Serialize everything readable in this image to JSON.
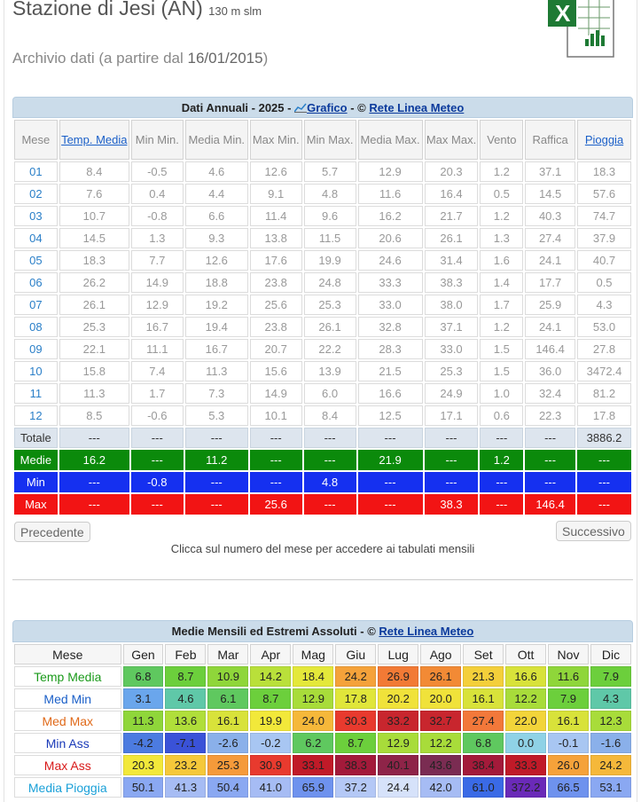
{
  "header": {
    "station": "Stazione di Jesi (AN)",
    "altitude": "130 m slm",
    "archive_prefix": "Archivio dati (a partire dal",
    "archive_date": "16/01/2015",
    "archive_suffix": ")"
  },
  "annual": {
    "title_prefix": "Dati Annuali - 2025 -",
    "chart_link": "Grafico",
    "sep": "- ©",
    "source_link": "Rete Linea Meteo",
    "columns": [
      "Mese",
      "Temp. Media",
      "Min Min.",
      "Media Min.",
      "Max Min.",
      "Min Max.",
      "Media Max.",
      "Max Max.",
      "Vento",
      "Raffica",
      "Pioggia"
    ],
    "rows": [
      [
        "01",
        "8.4",
        "-0.5",
        "4.6",
        "12.6",
        "5.7",
        "12.9",
        "20.3",
        "1.2",
        "37.1",
        "18.3"
      ],
      [
        "02",
        "7.6",
        "0.4",
        "4.4",
        "9.1",
        "4.8",
        "11.6",
        "16.4",
        "0.5",
        "14.5",
        "57.6"
      ],
      [
        "03",
        "10.7",
        "-0.8",
        "6.6",
        "11.4",
        "9.6",
        "16.2",
        "21.7",
        "1.2",
        "40.3",
        "74.7"
      ],
      [
        "04",
        "14.5",
        "1.3",
        "9.3",
        "13.8",
        "11.5",
        "20.6",
        "26.1",
        "1.3",
        "27.4",
        "37.9"
      ],
      [
        "05",
        "18.3",
        "7.7",
        "12.6",
        "17.6",
        "19.9",
        "24.6",
        "31.4",
        "1.6",
        "24.1",
        "40.7"
      ],
      [
        "06",
        "26.2",
        "14.9",
        "18.8",
        "23.8",
        "24.8",
        "33.3",
        "38.3",
        "1.4",
        "17.7",
        "0.5"
      ],
      [
        "07",
        "26.1",
        "12.9",
        "19.2",
        "25.6",
        "25.3",
        "33.0",
        "38.0",
        "1.7",
        "25.9",
        "4.3"
      ],
      [
        "08",
        "25.3",
        "16.7",
        "19.4",
        "23.8",
        "26.1",
        "32.8",
        "37.1",
        "1.2",
        "24.1",
        "53.0"
      ],
      [
        "09",
        "22.1",
        "11.1",
        "16.7",
        "20.7",
        "22.2",
        "28.3",
        "33.0",
        "1.5",
        "146.4",
        "27.8"
      ],
      [
        "10",
        "15.8",
        "7.4",
        "11.3",
        "15.6",
        "13.9",
        "21.5",
        "25.3",
        "1.5",
        "36.0",
        "3472.4"
      ],
      [
        "11",
        "11.3",
        "1.7",
        "7.3",
        "14.9",
        "6.0",
        "16.6",
        "24.9",
        "1.0",
        "32.4",
        "81.2"
      ],
      [
        "12",
        "8.5",
        "-0.6",
        "5.3",
        "10.1",
        "8.4",
        "12.5",
        "17.1",
        "0.6",
        "22.3",
        "17.8"
      ]
    ],
    "totale": [
      "Totale",
      "---",
      "---",
      "---",
      "---",
      "---",
      "---",
      "---",
      "---",
      "---",
      "3886.2"
    ],
    "medie": [
      "Medie",
      "16.2",
      "---",
      "11.2",
      "---",
      "---",
      "21.9",
      "---",
      "1.2",
      "---",
      "---"
    ],
    "min": [
      "Min",
      "---",
      "-0.8",
      "---",
      "---",
      "4.8",
      "---",
      "---",
      "---",
      "---",
      "---"
    ],
    "max": [
      "Max",
      "---",
      "---",
      "---",
      "25.6",
      "---",
      "---",
      "38.3",
      "---",
      "146.4",
      "---"
    ],
    "prev_button": "Precedente",
    "next_button": "Successivo",
    "note": "Clicca sul numero del mese per accedere ai tabulati mensili"
  },
  "monthly": {
    "title_prefix": "Medie Mensili ed Estremi Assoluti - ©",
    "source_link": "Rete Linea Meteo",
    "columns": [
      "Mese",
      "Gen",
      "Feb",
      "Mar",
      "Apr",
      "Mag",
      "Giu",
      "Lug",
      "Ago",
      "Set",
      "Ott",
      "Nov",
      "Dic"
    ],
    "rows": [
      {
        "label": "Temp Media",
        "label_color": "#1a9a1a",
        "values": [
          "6.8",
          "8.7",
          "10.9",
          "14.2",
          "18.4",
          "24.2",
          "26.9",
          "26.1",
          "21.3",
          "16.6",
          "11.6",
          "7.9"
        ],
        "colors": [
          "#5fc85f",
          "#6ccf3c",
          "#8fd63a",
          "#b9e03a",
          "#e4e83a",
          "#f5a23a",
          "#f27a35",
          "#f28a35",
          "#f4cf3a",
          "#d8e23a",
          "#8fd63a",
          "#6ccf3c"
        ]
      },
      {
        "label": "Med Min",
        "label_color": "#1a5fc8",
        "values": [
          "3.1",
          "4.6",
          "6.1",
          "8.7",
          "12.9",
          "17.8",
          "20.2",
          "20.0",
          "16.1",
          "12.2",
          "7.9",
          "4.3"
        ],
        "colors": [
          "#6aa6ec",
          "#5fc8a8",
          "#5fc85f",
          "#6ccf3c",
          "#a8dc3a",
          "#e0e63a",
          "#f0e23a",
          "#f0e23a",
          "#d8e23a",
          "#a8dc3a",
          "#6ccf3c",
          "#5fc8a8"
        ]
      },
      {
        "label": "Med Max",
        "label_color": "#e06a1a",
        "values": [
          "11.3",
          "13.6",
          "16.1",
          "19.9",
          "24.0",
          "30.3",
          "33.2",
          "32.7",
          "27.4",
          "22.0",
          "16.1",
          "12.3"
        ],
        "colors": [
          "#8fd63a",
          "#b0de3a",
          "#d8e23a",
          "#f2e83a",
          "#f5b83a",
          "#e83a2e",
          "#c8262e",
          "#c8262e",
          "#f2783a",
          "#f2d43a",
          "#d8e23a",
          "#a8dc3a"
        ]
      },
      {
        "label": "Min Ass",
        "label_color": "#1a3ab8",
        "values": [
          "-4.2",
          "-7.1",
          "-2.6",
          "-0.2",
          "6.2",
          "8.7",
          "12.9",
          "12.2",
          "6.8",
          "0.0",
          "-0.1",
          "-1.6"
        ],
        "colors": [
          "#4c7be0",
          "#3a52d8",
          "#8ab0ea",
          "#a8c6f2",
          "#5fc85f",
          "#6ccf3c",
          "#a8dc3a",
          "#a8dc3a",
          "#5fc85f",
          "#8fd2e6",
          "#a8c6f2",
          "#8ab0ea"
        ]
      },
      {
        "label": "Max Ass",
        "label_color": "#d81a1a",
        "values": [
          "20.3",
          "23.2",
          "25.3",
          "30.9",
          "33.1",
          "38.3",
          "40.1",
          "43.6",
          "38.4",
          "33.3",
          "26.0",
          "24.2"
        ],
        "colors": [
          "#f2e83a",
          "#f5c83a",
          "#f59a3a",
          "#e83a2e",
          "#c01a28",
          "#a31a3a",
          "#8e2448",
          "#7a2c52",
          "#a31a3a",
          "#c01a28",
          "#f5a23a",
          "#f5b83a"
        ]
      },
      {
        "label": "Media Pioggia",
        "label_color": "#1aa0d8",
        "values": [
          "50.1",
          "41.3",
          "50.4",
          "41.0",
          "65.9",
          "37.2",
          "24.4",
          "42.0",
          "61.0",
          "372.2",
          "66.5",
          "53.1"
        ],
        "colors": [
          "#8aa8f2",
          "#a6bcf4",
          "#8aa8f2",
          "#a6bcf4",
          "#6e92ee",
          "#b4c8f6",
          "#d6e2fa",
          "#a6bcf4",
          "#3a6ae6",
          "#6a2ab8",
          "#6e92ee",
          "#8aa8f2"
        ]
      }
    ]
  }
}
